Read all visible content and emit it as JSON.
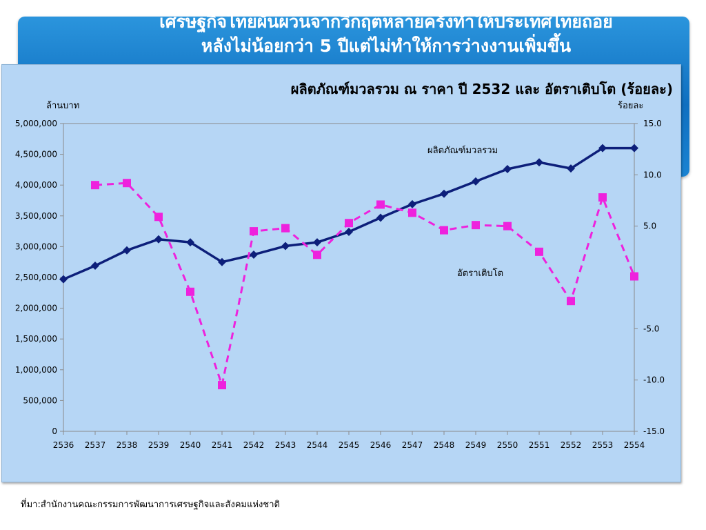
{
  "slide": {
    "headline_line1": "เศรษฐกิจไทยผันผวนจากวิกฤตหลายครั้งทำให้ประเทศไทยถอย",
    "headline_line2": "หลังไม่น้อยกว่า 5 ปีแต่ไม่ทำให้การว่างงานเพิ่มขึ้น",
    "source": "ที่มา:สำนักงานคณะกรรมการพัฒนาการเศรษฐกิจและสังคมแห่งชาติ"
  },
  "colors": {
    "banner": "#1a7fd0",
    "panel": "#b6d6f5",
    "gdp_line": "#0d1f7a",
    "growth_line": "#ee22dd"
  },
  "chart_data": {
    "type": "line",
    "title": "ผลิตภัณฑ์มวลรวม ณ ราคา ปี 2532 และ อัตราเติบโต (ร้อยละ)",
    "ylabel_left": "ล้านบาท",
    "ylabel_right": "ร้อยละ",
    "x": [
      "2536",
      "2537",
      "2538",
      "2539",
      "2540",
      "2541",
      "2542",
      "2543",
      "2544",
      "2545",
      "2546",
      "2547",
      "2548",
      "2549",
      "2550",
      "2551",
      "2552",
      "2553",
      "2554"
    ],
    "ylim_left": [
      0,
      5000000
    ],
    "ylim_right": [
      -15,
      15
    ],
    "left_ticks": [
      "0",
      "500,000",
      "1,000,000",
      "1,500,000",
      "2,000,000",
      "2,500,000",
      "3,000,000",
      "3,500,000",
      "4,000,000",
      "4,500,000",
      "5,000,000"
    ],
    "right_ticks": [
      "-15.0",
      "-10.0",
      "-5.0",
      "5.0",
      "10.0",
      "15.0"
    ],
    "right_tick_values": [
      -15,
      -10,
      -5,
      5,
      10,
      15
    ],
    "grid": false,
    "series": [
      {
        "name": "ผลิตภัณฑ์มวลรวม",
        "axis": "left",
        "style": "solid",
        "marker": "diamond",
        "color": "#0d1f7a",
        "values": [
          2470000,
          2690000,
          2940000,
          3120000,
          3070000,
          2750000,
          2870000,
          3010000,
          3070000,
          3240000,
          3470000,
          3690000,
          3860000,
          4060000,
          4260000,
          4370000,
          4270000,
          4600000,
          4600000
        ]
      },
      {
        "name": "อัตราเติบโต",
        "axis": "right",
        "style": "dashed",
        "marker": "square",
        "color": "#ee22dd",
        "values": [
          null,
          9.0,
          9.2,
          5.9,
          -1.4,
          -10.5,
          4.5,
          4.8,
          2.2,
          5.3,
          7.1,
          6.3,
          4.6,
          5.1,
          5.0,
          2.5,
          -2.3,
          7.8,
          0.1
        ]
      }
    ]
  }
}
